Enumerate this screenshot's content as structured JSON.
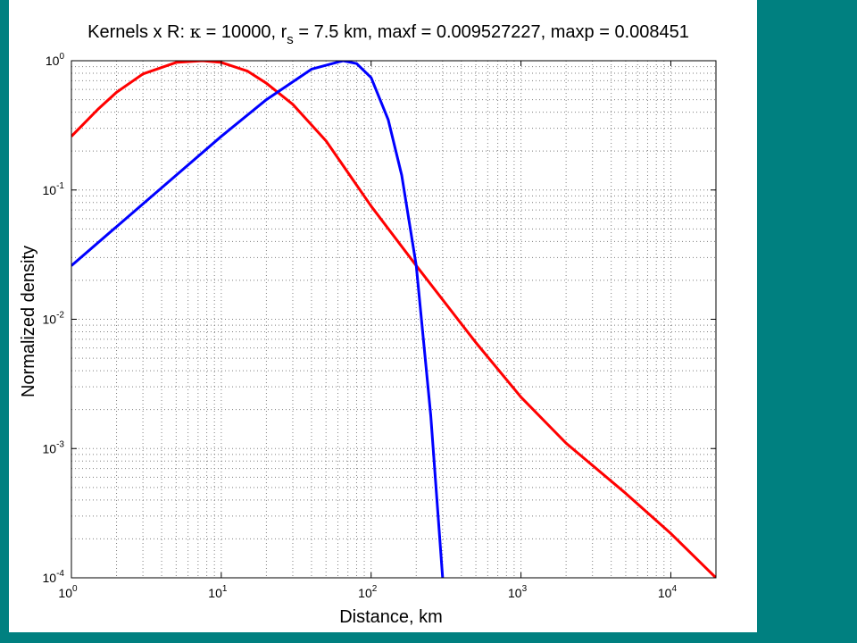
{
  "colors": {
    "background": "#008080",
    "panel": "#ffffff",
    "red_series": "#ff0000",
    "blue_series": "#0000ff",
    "grid": "#7f7f7f"
  },
  "chart_data": {
    "type": "line",
    "title_parts": {
      "prefix": "Kernels x R: ",
      "kappa_symbol": "κ",
      "kappa_text": " = 10000,  r",
      "subscript": "s",
      "rest": " = 7.5 km,  maxf = 0.009527227,  maxp = 0.008451"
    },
    "xlabel": "Distance, km",
    "ylabel": "Normalized density",
    "x_scale": "log",
    "y_scale": "log",
    "xlim": [
      1,
      20000
    ],
    "ylim": [
      0.0001,
      1
    ],
    "x_ticks": [
      {
        "base": "10",
        "exp": "0"
      },
      {
        "base": "10",
        "exp": "1"
      },
      {
        "base": "10",
        "exp": "2"
      },
      {
        "base": "10",
        "exp": "3"
      },
      {
        "base": "10",
        "exp": "4"
      }
    ],
    "y_ticks": [
      {
        "base": "10",
        "exp": "0"
      },
      {
        "base": "10",
        "exp": "-1"
      },
      {
        "base": "10",
        "exp": "-2"
      },
      {
        "base": "10",
        "exp": "-3"
      },
      {
        "base": "10",
        "exp": "-4"
      }
    ],
    "grid": true,
    "grid_style": "dotted",
    "series": [
      {
        "color": "red",
        "x": [
          1,
          1.5,
          2,
          3,
          5,
          7.5,
          10,
          15,
          20,
          30,
          50,
          100,
          200,
          500,
          1000,
          2000,
          5000,
          10000,
          20000
        ],
        "y": [
          0.26,
          0.42,
          0.57,
          0.79,
          0.97,
          1.0,
          0.97,
          0.83,
          0.67,
          0.46,
          0.24,
          0.075,
          0.026,
          0.0066,
          0.0025,
          0.0011,
          0.00045,
          0.00022,
          7.5e-05
        ]
      },
      {
        "color": "blue",
        "x": [
          1,
          2,
          5,
          10,
          20,
          40,
          65,
          80,
          100,
          130,
          160,
          200,
          250,
          300
        ],
        "y": [
          0.026,
          0.052,
          0.13,
          0.26,
          0.5,
          0.86,
          1.0,
          0.95,
          0.74,
          0.35,
          0.13,
          0.026,
          0.0018,
          0.0001
        ]
      }
    ]
  }
}
